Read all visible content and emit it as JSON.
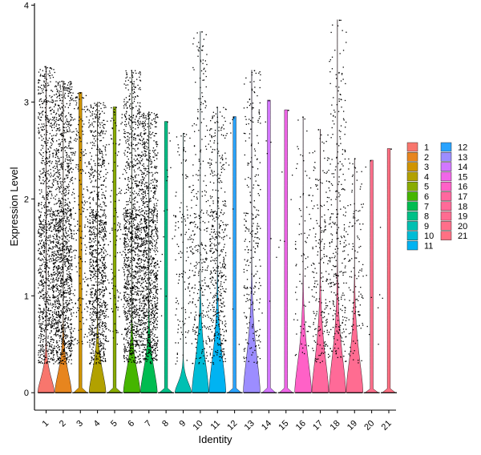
{
  "chart_data": {
    "type": "violin",
    "xlabel": "Identity",
    "ylabel": "Expression Level",
    "ylim": [
      -0.18,
      4.02
    ],
    "yticks": [
      "0",
      "1",
      "2",
      "3",
      "4"
    ],
    "grid": false,
    "legend_position": "right",
    "legend_columns": 2,
    "groups": [
      {
        "label": "1",
        "color": "#F8766D",
        "max": 3.37,
        "ncells": 2300,
        "zero_frac": 0.55,
        "shape": "spike",
        "peak": 0.16,
        "spread": 0.9
      },
      {
        "label": "2",
        "color": "#E7851E",
        "max": 3.22,
        "ncells": 2600,
        "zero_frac": 0.5,
        "shape": "spike",
        "peak": 0.24,
        "spread": 0.9
      },
      {
        "label": "3",
        "color": "#D09400",
        "max": 3.1,
        "ncells": 1200,
        "zero_frac": 0.8,
        "shape": "flat",
        "peak": 0.02,
        "spread": 0.8
      },
      {
        "label": "4",
        "color": "#B2A100",
        "max": 3.0,
        "ncells": 2200,
        "zero_frac": 0.55,
        "shape": "spike",
        "peak": 0.26,
        "spread": 0.9
      },
      {
        "label": "5",
        "color": "#89AC00",
        "max": 2.95,
        "ncells": 900,
        "zero_frac": 0.85,
        "shape": "flat",
        "peak": 0.02,
        "spread": 0.8
      },
      {
        "label": "6",
        "color": "#45B500",
        "max": 3.33,
        "ncells": 2300,
        "zero_frac": 0.5,
        "shape": "spike",
        "peak": 0.28,
        "spread": 0.9
      },
      {
        "label": "7",
        "color": "#00BC51",
        "max": 2.9,
        "ncells": 2200,
        "zero_frac": 0.5,
        "shape": "spike",
        "peak": 0.3,
        "spread": 0.9
      },
      {
        "label": "8",
        "color": "#00C087",
        "max": 2.8,
        "ncells": 180,
        "zero_frac": 0.9,
        "shape": "flat",
        "peak": 0.02,
        "spread": 0.8
      },
      {
        "label": "9",
        "color": "#00C0B2",
        "max": 2.68,
        "ncells": 500,
        "zero_frac": 0.7,
        "shape": "spike",
        "peak": 0.08,
        "spread": 0.6
      },
      {
        "label": "10",
        "color": "#00BCD6",
        "max": 3.73,
        "ncells": 550,
        "zero_frac": 0.45,
        "shape": "spike",
        "peak": 0.42,
        "spread": 0.8
      },
      {
        "label": "11",
        "color": "#00B3F2",
        "max": 2.95,
        "ncells": 800,
        "zero_frac": 0.4,
        "shape": "spike",
        "peak": 0.46,
        "spread": 0.8
      },
      {
        "label": "12",
        "color": "#29A3FF",
        "max": 2.85,
        "ncells": 120,
        "zero_frac": 0.9,
        "shape": "flat",
        "peak": 0.02,
        "spread": 0.8
      },
      {
        "label": "13",
        "color": "#9C8DFF",
        "max": 3.33,
        "ncells": 450,
        "zero_frac": 0.4,
        "shape": "spike",
        "peak": 0.5,
        "spread": 0.8
      },
      {
        "label": "14",
        "color": "#D277FF",
        "max": 3.02,
        "ncells": 80,
        "zero_frac": 0.9,
        "shape": "flat",
        "peak": 0.02,
        "spread": 0.8
      },
      {
        "label": "15",
        "color": "#F166E8",
        "max": 2.92,
        "ncells": 70,
        "zero_frac": 0.9,
        "shape": "flat",
        "peak": 0.02,
        "spread": 0.8
      },
      {
        "label": "16",
        "color": "#FF61C7",
        "max": 2.85,
        "ncells": 170,
        "zero_frac": 0.5,
        "shape": "spike",
        "peak": 0.44,
        "spread": 0.8
      },
      {
        "label": "17",
        "color": "#FF689E",
        "max": 2.72,
        "ncells": 350,
        "zero_frac": 0.4,
        "shape": "spike",
        "peak": 0.48,
        "spread": 0.8
      },
      {
        "label": "18",
        "color": "#FF6A98",
        "max": 3.85,
        "ncells": 450,
        "zero_frac": 0.3,
        "shape": "spike",
        "peak": 0.5,
        "spread": 1.0
      },
      {
        "label": "19",
        "color": "#FF6C91",
        "max": 2.42,
        "ncells": 200,
        "zero_frac": 0.35,
        "shape": "spike",
        "peak": 0.46,
        "spread": 0.8
      },
      {
        "label": "20",
        "color": "#FF6E8A",
        "max": 2.4,
        "ncells": 90,
        "zero_frac": 0.9,
        "shape": "flat",
        "peak": 0.02,
        "spread": 0.8
      },
      {
        "label": "21",
        "color": "#FF7083",
        "max": 2.52,
        "ncells": 6,
        "zero_frac": 0.9,
        "shape": "flat",
        "peak": 0.02,
        "spread": 0.8
      }
    ]
  }
}
